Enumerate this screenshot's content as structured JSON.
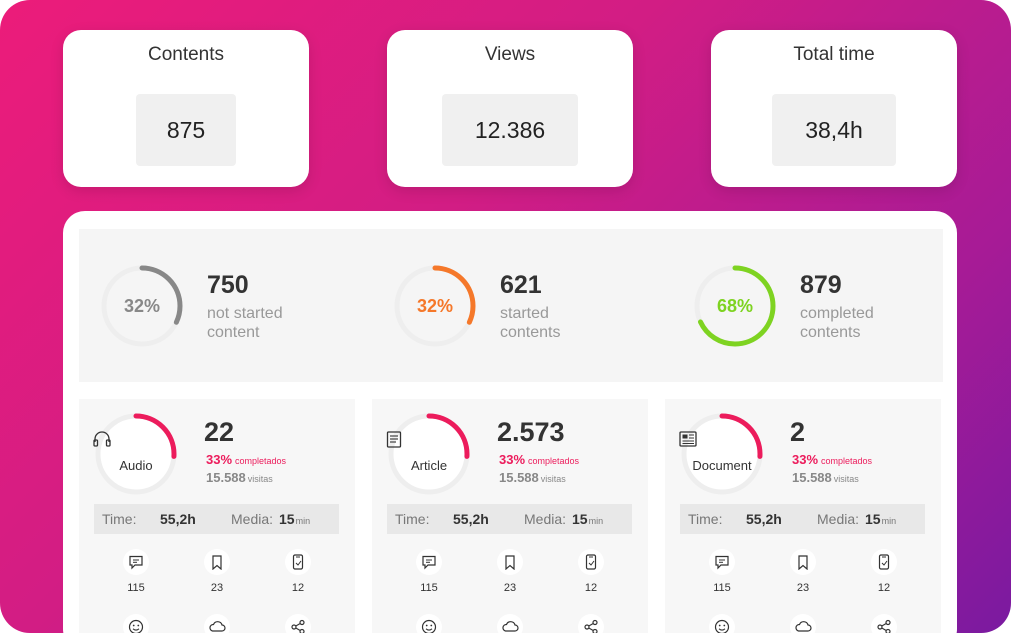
{
  "kpis": [
    {
      "title": "Contents",
      "value": "875"
    },
    {
      "title": "Views",
      "value": "12.386"
    },
    {
      "title": "Total time",
      "value": "38,4h"
    }
  ],
  "summary": [
    {
      "percent": "32%",
      "fraction": 0.32,
      "count": "750",
      "label_line1": "not started",
      "label_line2": "content",
      "color": "#888888"
    },
    {
      "percent": "32%",
      "fraction": 0.32,
      "count": "621",
      "label_line1": "started",
      "label_line2": "contents",
      "color": "#f5782a"
    },
    {
      "percent": "68%",
      "fraction": 0.68,
      "count": "879",
      "label_line1": "completed",
      "label_line2": "contents",
      "color": "#7ed321"
    }
  ],
  "cards": [
    {
      "icon": "headphones-icon",
      "label": "Audio",
      "count": "22",
      "completed_pct": "33%",
      "completed_label": "completados",
      "visits": "15.588",
      "visits_label": "visitas",
      "time_label": "Time:",
      "time_value": "55,2h",
      "media_label": "Media:",
      "media_value": "15",
      "media_unit": "min",
      "comments": "115",
      "bookmarks": "23",
      "mobile": "12"
    },
    {
      "icon": "article-icon",
      "label": "Article",
      "count": "2.573",
      "completed_pct": "33%",
      "completed_label": "completados",
      "visits": "15.588",
      "visits_label": "visitas",
      "time_label": "Time:",
      "time_value": "55,2h",
      "media_label": "Media:",
      "media_value": "15",
      "media_unit": "min",
      "comments": "115",
      "bookmarks": "23",
      "mobile": "12"
    },
    {
      "icon": "document-icon",
      "label": "Document",
      "count": "2",
      "completed_pct": "33%",
      "completed_label": "completados",
      "visits": "15.588",
      "visits_label": "visitas",
      "time_label": "Time:",
      "time_value": "55,2h",
      "media_label": "Media:",
      "media_value": "15",
      "media_unit": "min",
      "comments": "115",
      "bookmarks": "23",
      "mobile": "12"
    }
  ],
  "card_ring": {
    "fraction": 0.26,
    "color": "#ec1c5c"
  },
  "colors": {
    "accent": "#ec1c5c",
    "track": "#eeeeee"
  }
}
